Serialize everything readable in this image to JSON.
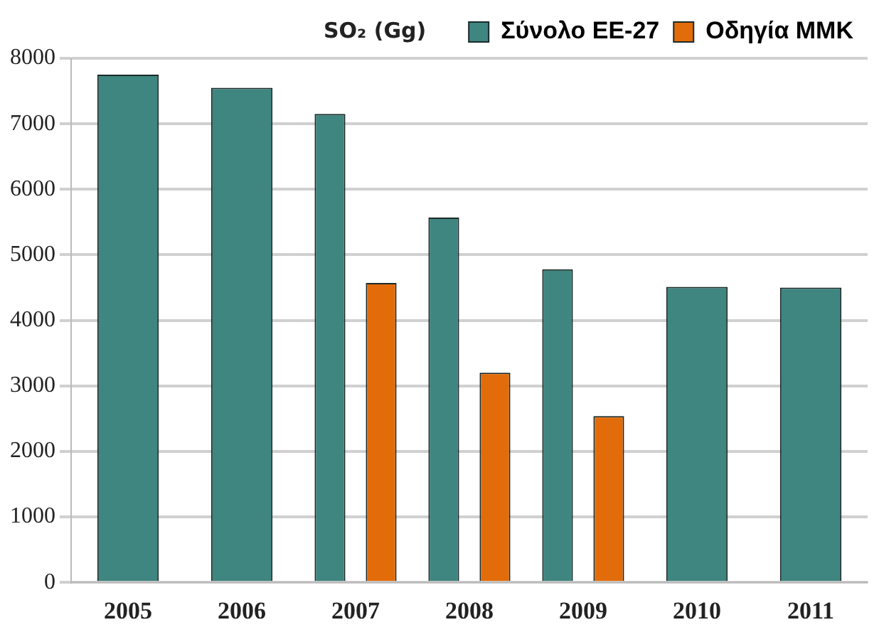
{
  "chart_data": {
    "type": "bar",
    "ylabel": "SO₂ (Gg)",
    "categories": [
      "2005",
      "2006",
      "2007",
      "2008",
      "2009",
      "2010",
      "2011"
    ],
    "series": [
      {
        "name": "Σύνολο ΕΕ-27",
        "color": "#3f8580",
        "values": [
          7750,
          7550,
          7150,
          5570,
          4780,
          4510,
          4500
        ]
      },
      {
        "name": "Οδηγία ΜΜΚ",
        "color": "#e36c0a",
        "values": [
          null,
          null,
          4570,
          3200,
          2540,
          null,
          null
        ]
      }
    ],
    "ylim": [
      0,
      8000
    ],
    "yticks": [
      0,
      1000,
      2000,
      3000,
      4000,
      5000,
      6000,
      7000,
      8000
    ],
    "grid": "y",
    "legend": "top right"
  }
}
